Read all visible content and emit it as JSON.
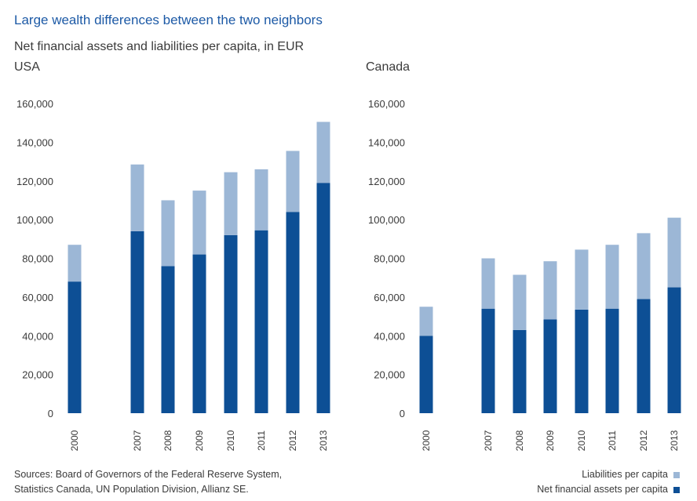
{
  "title": "Large wealth differences between the two neighbors",
  "subtitle": "Net financial assets and liabilities per capita, in EUR",
  "sources": [
    "Sources: Board of Governors of the Federal Reserve System,",
    "Statistics Canada, UN Population Division, Allianz SE."
  ],
  "legend": [
    {
      "label": "Liabilities per capita",
      "color": "#9cb7d6"
    },
    {
      "label": "Net financial assets per capita",
      "color": "#0d4f95"
    }
  ],
  "chart_data": [
    {
      "type": "bar",
      "stacked": true,
      "title": "USA",
      "categories": [
        "2000",
        "2007",
        "2008",
        "2009",
        "2010",
        "2011",
        "2012",
        "2013"
      ],
      "ylim": [
        0,
        160000
      ],
      "yticks": [
        "0",
        "20,000",
        "40,000",
        "60,000",
        "80,000",
        "100,000",
        "120,000",
        "140,000",
        "160,000"
      ],
      "series": [
        {
          "name": "Net financial assets per capita",
          "values": [
            68000,
            94000,
            76000,
            82000,
            92000,
            94500,
            104000,
            119000
          ]
        },
        {
          "name": "Liabilities per capita",
          "values": [
            19000,
            34500,
            34000,
            33000,
            32500,
            31500,
            31500,
            31500
          ]
        }
      ]
    },
    {
      "type": "bar",
      "stacked": true,
      "title": "Canada",
      "categories": [
        "2000",
        "2007",
        "2008",
        "2009",
        "2010",
        "2011",
        "2012",
        "2013"
      ],
      "ylim": [
        0,
        160000
      ],
      "yticks": [
        "0",
        "20,000",
        "40,000",
        "60,000",
        "80,000",
        "100,000",
        "120,000",
        "140,000",
        "160,000"
      ],
      "series": [
        {
          "name": "Net financial assets per capita",
          "values": [
            40000,
            54000,
            43000,
            48500,
            53500,
            54000,
            59000,
            65000
          ]
        },
        {
          "name": "Liabilities per capita",
          "values": [
            15000,
            26000,
            28500,
            30000,
            31000,
            33000,
            34000,
            36000
          ]
        }
      ]
    }
  ]
}
